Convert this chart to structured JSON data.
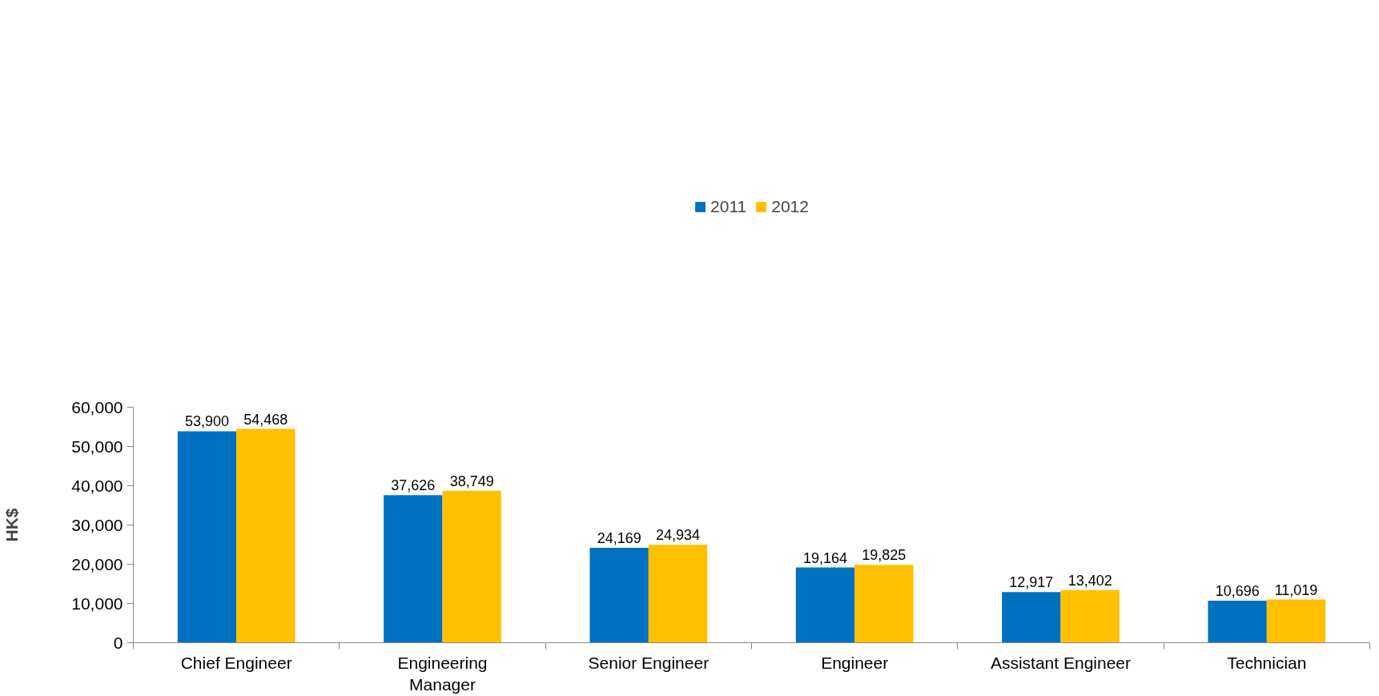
{
  "chart_data": {
    "type": "bar",
    "ylabel": "HK$",
    "categories": [
      "Chief Engineer",
      "Engineering\nManager",
      "Senior Engineer",
      "Engineer",
      "Assistant Engineer",
      "Technician"
    ],
    "series": [
      {
        "name": "2011",
        "color": "#0070c0",
        "values": [
          53900,
          37626,
          24169,
          19164,
          12917,
          10696
        ],
        "value_labels": [
          "53,900",
          "37,626",
          "24,169",
          "19,164",
          "12,917",
          "10,696"
        ]
      },
      {
        "name": "2012",
        "color": "#ffc000",
        "values": [
          54468,
          38749,
          24934,
          19825,
          13402,
          11019
        ],
        "value_labels": [
          "54,468",
          "38,749",
          "24,934",
          "19,825",
          "13,402",
          "11,019"
        ]
      }
    ],
    "ylim": [
      0,
      60000
    ],
    "yticks": [
      {
        "value": 0,
        "label": "0"
      },
      {
        "value": 10000,
        "label": "10,000"
      },
      {
        "value": 20000,
        "label": "20,000"
      },
      {
        "value": 30000,
        "label": "30,000"
      },
      {
        "value": 40000,
        "label": "40,000"
      },
      {
        "value": 50000,
        "label": "50,000"
      },
      {
        "value": 60000,
        "label": "60,000"
      }
    ],
    "grid": false,
    "legend": "top"
  }
}
